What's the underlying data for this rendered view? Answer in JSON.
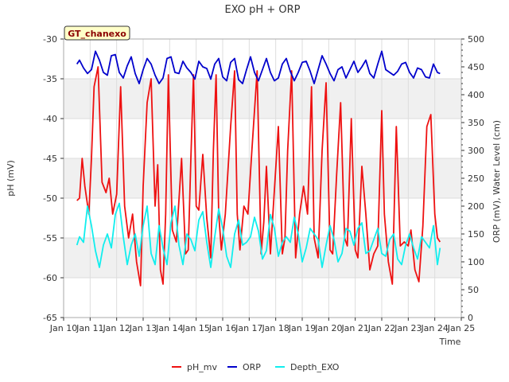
{
  "chart_data": {
    "type": "line",
    "title": "EXO pH + ORP",
    "station_label": "GT_chanexo",
    "xlabel": "Time",
    "ylabel_left": "pH (mV)",
    "ylabel_right": "ORP (mV), Water Level (cm)",
    "x_ticks": [
      "Jan 10",
      "Jan 11",
      "Jan 12",
      "Jan 13",
      "Jan 14",
      "Jan 15",
      "Jan 16",
      "Jan 17",
      "Jan 18",
      "Jan 19",
      "Jan 20",
      "Jan 21",
      "Jan 22",
      "Jan 23",
      "Jan 24",
      "Jan 25"
    ],
    "xlim_days": [
      10,
      25
    ],
    "ylim_left": [
      -65,
      -30
    ],
    "yticks_left": [
      -65,
      -60,
      -55,
      -50,
      -45,
      -40,
      -35,
      -30
    ],
    "ylim_right": [
      0,
      500
    ],
    "yticks_right": [
      0,
      50,
      100,
      150,
      200,
      250,
      300,
      350,
      400,
      450,
      500
    ],
    "grid": true,
    "legend_position": "bottom-center",
    "series": [
      {
        "name": "pH_mv",
        "axis": "left",
        "color": "#ee1111",
        "x": [
          10.5,
          10.6,
          10.7,
          10.8,
          10.95,
          11.05,
          11.15,
          11.3,
          11.45,
          11.6,
          11.72,
          11.85,
          12.0,
          12.15,
          12.3,
          12.45,
          12.6,
          12.75,
          12.9,
          13.0,
          13.15,
          13.3,
          13.45,
          13.55,
          13.65,
          13.75,
          13.85,
          13.95,
          14.1,
          14.25,
          14.45,
          14.6,
          14.7,
          14.8,
          14.9,
          15.0,
          15.1,
          15.25,
          15.4,
          15.55,
          15.65,
          15.75,
          15.85,
          15.95,
          16.1,
          16.3,
          16.45,
          16.55,
          16.65,
          16.8,
          16.95,
          17.1,
          17.3,
          17.45,
          17.55,
          17.65,
          17.8,
          17.95,
          18.1,
          18.25,
          18.35,
          18.45,
          18.6,
          18.75,
          18.9,
          19.05,
          19.2,
          19.35,
          19.45,
          19.6,
          19.75,
          19.9,
          20.05,
          20.15,
          20.3,
          20.45,
          20.6,
          20.7,
          20.85,
          21.0,
          21.1,
          21.25,
          21.4,
          21.55,
          21.7,
          21.85,
          22.0,
          22.1,
          22.25,
          22.4,
          22.55,
          22.7,
          22.85,
          23.0,
          23.1,
          23.25,
          23.4,
          23.55,
          23.7,
          23.85,
          24.0,
          24.1,
          24.2
        ],
        "y": [
          -50.3,
          -50.0,
          -45.0,
          -48.5,
          -52.0,
          -45.0,
          -36.0,
          -33.5,
          -48.0,
          -49.3,
          -47.5,
          -52.0,
          -49.5,
          -36.0,
          -51.0,
          -55.0,
          -52.0,
          -58.0,
          -61.0,
          -48.5,
          -38.0,
          -35.0,
          -51.0,
          -45.8,
          -59.0,
          -60.8,
          -52.0,
          -34.5,
          -54.0,
          -55.5,
          -45.0,
          -57.0,
          -56.5,
          -45.0,
          -34.5,
          -51.0,
          -51.5,
          -44.5,
          -52.5,
          -57.5,
          -44.0,
          -34.5,
          -52.0,
          -56.5,
          -52.0,
          -41.0,
          -34.0,
          -52.0,
          -56.5,
          -51.0,
          -52.0,
          -44.0,
          -34.0,
          -57.0,
          -53.0,
          -46.0,
          -57.0,
          -49.0,
          -41.0,
          -57.0,
          -55.0,
          -44.0,
          -34.0,
          -57.5,
          -52.0,
          -48.5,
          -52.0,
          -36.0,
          -55.0,
          -57.5,
          -44.0,
          -35.5,
          -56.5,
          -57.0,
          -47.0,
          -38.0,
          -55.0,
          -56.0,
          -40.0,
          -56.5,
          -57.5,
          -46.0,
          -52.0,
          -59.0,
          -57.0,
          -56.0,
          -39.0,
          -52.0,
          -58.0,
          -60.8,
          -41.0,
          -56.0,
          -55.5,
          -56.0,
          -54.0,
          -59.0,
          -60.5,
          -53.5,
          -41.0,
          -39.5,
          -52.0,
          -55.0,
          -55.5
        ]
      },
      {
        "name": "ORP",
        "axis": "right",
        "color": "#0000cc",
        "x": [
          10.5,
          10.6,
          10.75,
          10.9,
          11.05,
          11.2,
          11.35,
          11.5,
          11.65,
          11.8,
          11.95,
          12.1,
          12.25,
          12.4,
          12.55,
          12.7,
          12.85,
          13.0,
          13.15,
          13.3,
          13.45,
          13.6,
          13.75,
          13.9,
          14.05,
          14.2,
          14.35,
          14.5,
          14.65,
          14.8,
          14.95,
          15.1,
          15.25,
          15.4,
          15.55,
          15.7,
          15.85,
          16.0,
          16.15,
          16.3,
          16.45,
          16.6,
          16.75,
          16.9,
          17.05,
          17.2,
          17.35,
          17.5,
          17.65,
          17.8,
          17.95,
          18.1,
          18.25,
          18.4,
          18.55,
          18.7,
          18.85,
          19.0,
          19.15,
          19.3,
          19.45,
          19.6,
          19.75,
          19.9,
          20.05,
          20.2,
          20.35,
          20.5,
          20.65,
          20.8,
          20.95,
          21.1,
          21.25,
          21.4,
          21.55,
          21.7,
          21.85,
          22.0,
          22.15,
          22.3,
          22.45,
          22.6,
          22.75,
          22.9,
          23.05,
          23.2,
          23.35,
          23.5,
          23.65,
          23.8,
          23.95,
          24.1,
          24.2
        ],
        "y": [
          455,
          462,
          448,
          438,
          445,
          478,
          462,
          440,
          435,
          470,
          472,
          440,
          430,
          452,
          468,
          438,
          420,
          445,
          465,
          455,
          435,
          420,
          430,
          465,
          468,
          440,
          438,
          460,
          448,
          440,
          428,
          460,
          450,
          447,
          428,
          455,
          465,
          432,
          425,
          458,
          465,
          427,
          420,
          445,
          468,
          440,
          425,
          445,
          465,
          440,
          425,
          430,
          455,
          465,
          442,
          425,
          440,
          458,
          460,
          442,
          420,
          445,
          470,
          455,
          438,
          425,
          445,
          450,
          430,
          445,
          460,
          440,
          450,
          462,
          438,
          430,
          455,
          478,
          445,
          440,
          435,
          442,
          455,
          458,
          440,
          430,
          448,
          445,
          432,
          430,
          455,
          440,
          438
        ]
      },
      {
        "name": "Depth_EXO",
        "axis": "right",
        "color": "#11eeee",
        "x": [
          10.5,
          10.6,
          10.75,
          10.9,
          11.05,
          11.2,
          11.35,
          11.5,
          11.65,
          11.8,
          11.95,
          12.1,
          12.25,
          12.4,
          12.55,
          12.7,
          12.85,
          13.0,
          13.15,
          13.3,
          13.45,
          13.6,
          13.75,
          13.9,
          14.05,
          14.2,
          14.35,
          14.5,
          14.65,
          14.8,
          14.95,
          15.1,
          15.25,
          15.4,
          15.55,
          15.7,
          15.85,
          16.0,
          16.15,
          16.3,
          16.45,
          16.6,
          16.75,
          16.9,
          17.05,
          17.2,
          17.35,
          17.5,
          17.65,
          17.8,
          17.95,
          18.1,
          18.25,
          18.4,
          18.55,
          18.7,
          18.85,
          19.0,
          19.15,
          19.3,
          19.45,
          19.6,
          19.75,
          19.9,
          20.05,
          20.2,
          20.35,
          20.5,
          20.65,
          20.8,
          20.95,
          21.1,
          21.25,
          21.4,
          21.55,
          21.7,
          21.85,
          22.0,
          22.15,
          22.3,
          22.45,
          22.6,
          22.75,
          22.9,
          23.05,
          23.2,
          23.35,
          23.5,
          23.65,
          23.8,
          23.95,
          24.1,
          24.2
        ],
        "y": [
          130,
          145,
          135,
          200,
          165,
          120,
          90,
          130,
          150,
          125,
          185,
          205,
          145,
          95,
          130,
          150,
          110,
          165,
          200,
          115,
          95,
          165,
          125,
          95,
          170,
          200,
          130,
          95,
          150,
          140,
          120,
          175,
          190,
          135,
          90,
          145,
          195,
          160,
          110,
          90,
          150,
          175,
          130,
          135,
          145,
          180,
          155,
          105,
          120,
          185,
          160,
          110,
          135,
          145,
          135,
          180,
          150,
          100,
          125,
          160,
          150,
          140,
          90,
          130,
          165,
          140,
          100,
          115,
          160,
          155,
          130,
          160,
          170,
          115,
          120,
          140,
          160,
          115,
          110,
          140,
          150,
          105,
          95,
          130,
          150,
          125,
          105,
          145,
          135,
          125,
          165,
          95,
          125
        ]
      }
    ]
  }
}
